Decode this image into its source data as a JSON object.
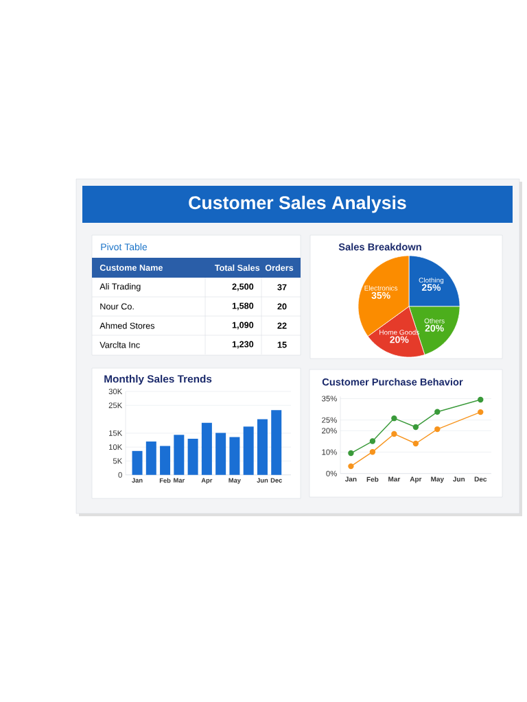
{
  "chart_data": [
    {
      "type": "other",
      "title": "Customer Sales Analysis"
    },
    {
      "type": "other",
      "title": "Pivot Table",
      "annotations": [
        "Custome Name",
        "Total Sales",
        "Orders",
        "Ali Trading",
        "2,500",
        "37",
        "Nour Co.",
        "1,580",
        "20",
        "Ahmed Stores",
        "1,090",
        "22",
        "Varclta Inc",
        "1,230",
        "15"
      ]
    },
    {
      "type": "pie",
      "title": "Sales Breakdown",
      "categories": [
        "Clothing",
        "Others",
        "Home Goods",
        "Electronics"
      ],
      "values": [
        25,
        20,
        20,
        35
      ],
      "colors": [
        "#1565c0",
        "#4cae1c",
        "#e53b2a",
        "#fb8c00"
      ],
      "value_labels": [
        "25%",
        "20%",
        "20%",
        "35%"
      ]
    },
    {
      "type": "bar",
      "title": "Monthly Sales Trends",
      "categories": [
        "Jan",
        null,
        "Feb",
        "Mar",
        null,
        "Apr",
        null,
        "May",
        null,
        "Jun",
        "Dec"
      ],
      "values": [
        8600,
        12000,
        10400,
        14400,
        13000,
        18700,
        15100,
        13600,
        17400,
        20000,
        23300
      ],
      "color": "#1a6fd4",
      "ylim": [
        0,
        30000
      ],
      "yticks": [
        0,
        {
          "value": 5000,
          "label": "5K"
        },
        {
          "value": 10000,
          "label": "10K"
        },
        {
          "value": 15000,
          "label": "15K"
        },
        {
          "value": 25000,
          "label": "25K"
        },
        {
          "value": 30000,
          "label": "30K"
        }
      ],
      "grid": "y"
    },
    {
      "type": "line",
      "title": "Customer Purchase Behavior",
      "categories": [
        "Jan",
        "Feb",
        "Mar",
        "Apr",
        "May",
        "Jun",
        "Dec"
      ],
      "series": [
        {
          "color": "#3a9a3a",
          "values": [
            9.5,
            15.1,
            25.8,
            21.7,
            28.8,
            null,
            34.5
          ]
        },
        {
          "color": "#f7941d",
          "values": [
            3.4,
            10.1,
            18.5,
            14.0,
            20.7,
            null,
            28.7
          ]
        }
      ],
      "ylim": [
        0,
        36
      ],
      "yticks": [
        {
          "value": 0,
          "label": "0%"
        },
        {
          "value": 10,
          "label": "10%"
        },
        {
          "value": 20,
          "label": "20%"
        },
        {
          "value": 25,
          "label": "25%"
        },
        {
          "value": 35,
          "label": "35%"
        }
      ],
      "grid": "y",
      "marker": "circle"
    }
  ]
}
